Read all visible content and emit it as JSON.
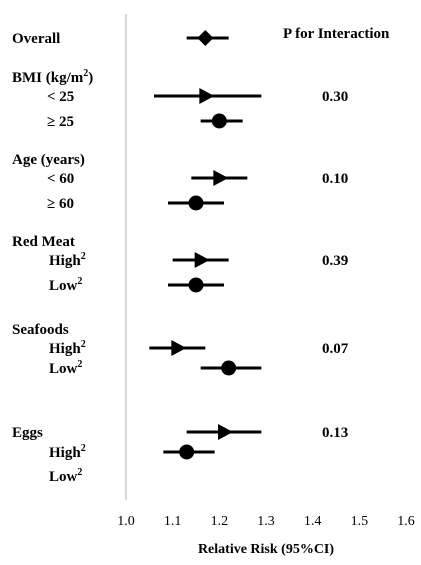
{
  "chart_data": {
    "type": "forest",
    "xlabel": "Relative Risk (95%CI)",
    "xlim": [
      1.0,
      1.6
    ],
    "xticks": [
      "1.0",
      "1.1",
      "1.2",
      "1.3",
      "1.4",
      "1.5",
      "1.6"
    ],
    "p_header": "P for Interaction",
    "rows": [
      {
        "label": "Overall",
        "label_style": "header",
        "est": 1.17,
        "lo": 1.13,
        "hi": 1.22,
        "marker": "diamond"
      },
      {
        "label": "BMI (kg/m",
        "sup": "2",
        "suffix": ")",
        "label_style": "header"
      },
      {
        "label": "< 25",
        "label_style": "sub",
        "est": 1.17,
        "lo": 1.06,
        "hi": 1.29,
        "marker": "triangle",
        "p": "0.30"
      },
      {
        "label": "≥ 25",
        "label_style": "sub",
        "est": 1.2,
        "lo": 1.16,
        "hi": 1.25,
        "marker": "circle"
      },
      {
        "label": "Age (years)",
        "label_style": "header"
      },
      {
        "label": "< 60",
        "label_style": "sub",
        "est": 1.2,
        "lo": 1.14,
        "hi": 1.26,
        "marker": "triangle",
        "p": "0.10"
      },
      {
        "label": "≥ 60",
        "label_style": "sub",
        "est": 1.15,
        "lo": 1.09,
        "hi": 1.21,
        "marker": "circle"
      },
      {
        "label": "Red Meat",
        "label_style": "header"
      },
      {
        "label": "High",
        "sup": "2",
        "label_style": "sub2",
        "est": 1.16,
        "lo": 1.1,
        "hi": 1.22,
        "marker": "triangle",
        "p": "0.39"
      },
      {
        "label": "Low",
        "sup": "2",
        "label_style": "sub2",
        "est": 1.15,
        "lo": 1.09,
        "hi": 1.21,
        "marker": "circle"
      },
      {
        "label": "Seafoods",
        "label_style": "header"
      },
      {
        "label": "High",
        "sup": "2",
        "label_style": "sub2",
        "est": 1.11,
        "lo": 1.05,
        "hi": 1.17,
        "marker": "triangle",
        "p": "0.07"
      },
      {
        "label": "Low",
        "sup": "2",
        "label_style": "sub2",
        "est": 1.22,
        "lo": 1.16,
        "hi": 1.29,
        "marker": "circle"
      },
      {
        "label": "Eggs",
        "label_style": "header",
        "est": 1.21,
        "lo": 1.13,
        "hi": 1.29,
        "marker": "triangle",
        "p": "0.13"
      },
      {
        "label": "High",
        "sup": "2",
        "label_style": "sub2",
        "est": 1.13,
        "lo": 1.08,
        "hi": 1.19,
        "marker": "circle"
      },
      {
        "label": "Low",
        "sup": "2",
        "label_style": "sub2"
      }
    ]
  }
}
